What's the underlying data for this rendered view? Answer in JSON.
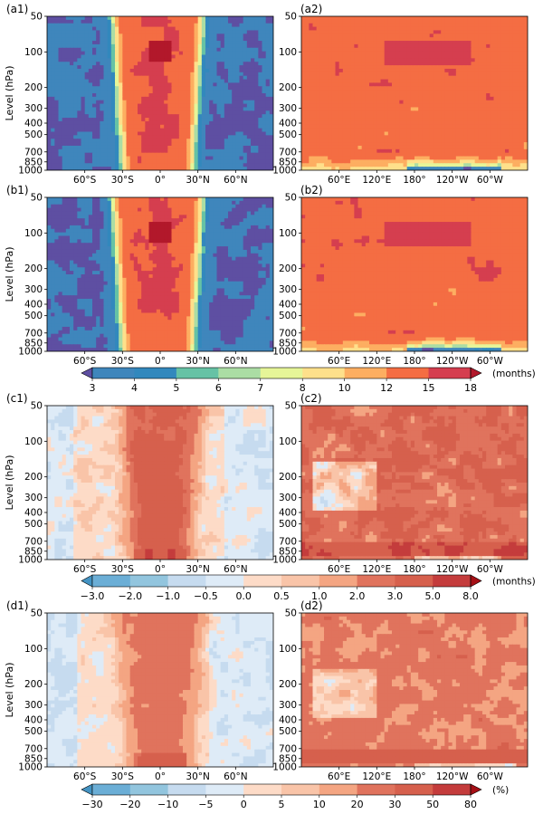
{
  "chart_data": {
    "type": "heatmap",
    "description_panels": [
      {
        "id": "a1",
        "label": "(a1)",
        "x_axis": "latitude",
        "x_ticks": [
          "60°S",
          "30°S",
          "0°",
          "30°N",
          "60°N"
        ],
        "ylabel": "Level (hPa)",
        "field": "lifetime_lat"
      },
      {
        "id": "a2",
        "label": "(a2)",
        "x_axis": "longitude",
        "x_ticks": [
          "60°E",
          "120°E",
          "180°",
          "120°W",
          "60°W"
        ],
        "field": "lifetime_lon"
      },
      {
        "id": "b1",
        "label": "(b1)",
        "x_axis": "latitude",
        "x_ticks": [
          "60°S",
          "30°S",
          "0°",
          "30°N",
          "60°N"
        ],
        "ylabel": "Level (hPa)",
        "field": "lifetime_lat"
      },
      {
        "id": "b2",
        "label": "(b2)",
        "x_axis": "longitude",
        "x_ticks": [
          "60°E",
          "120°E",
          "180°",
          "120°W",
          "60°W"
        ],
        "field": "lifetime_lon"
      },
      {
        "id": "c1",
        "label": "(c1)",
        "x_axis": "latitude",
        "x_ticks": [
          "60°S",
          "30°S",
          "0°",
          "30°N",
          "60°N"
        ],
        "ylabel": "Level (hPa)",
        "field": "diff_lat"
      },
      {
        "id": "c2",
        "label": "(c2)",
        "x_axis": "longitude",
        "x_ticks": [
          "60°E",
          "120°E",
          "180°",
          "120°W",
          "60°W"
        ],
        "field": "diff_lon"
      },
      {
        "id": "d1",
        "label": "(d1)",
        "x_axis": "latitude",
        "x_ticks": [
          "60°S",
          "30°S",
          "0°",
          "30°N",
          "60°N"
        ],
        "ylabel": "Level (hPa)",
        "field": "pct_lat"
      },
      {
        "id": "d2",
        "label": "(d2)",
        "x_axis": "longitude",
        "x_ticks": [
          "60°E",
          "120°E",
          "180°",
          "120°W",
          "60°W"
        ],
        "field": "pct_lon"
      }
    ],
    "y_ticks": [
      "50",
      "100",
      "200",
      "300",
      "400",
      "500",
      "700",
      "850",
      "1000"
    ],
    "y_tick_values_hpa": [
      50,
      100,
      200,
      300,
      400,
      500,
      700,
      850,
      1000
    ],
    "latitude_range_deg": [
      -90,
      90
    ],
    "longitude_range_deg_east": [
      0,
      360
    ],
    "colorbars": [
      {
        "id": "cb1",
        "unit": "(months)",
        "ticks": [
          "3",
          "4",
          "5",
          "6",
          "7",
          "8",
          "10",
          "12",
          "15",
          "18"
        ],
        "colors": [
          "#5e4fa2",
          "#3f86bc",
          "#3288bd",
          "#66c2a5",
          "#abdda4",
          "#e6f598",
          "#fee08b",
          "#fdae61",
          "#f46d43",
          "#d53e4f",
          "#b2182b"
        ]
      },
      {
        "id": "cb2",
        "unit": "(months)",
        "ticks": [
          "−3.0",
          "−2.0",
          "−1.0",
          "−0.5",
          "0.0",
          "0.5",
          "1.0",
          "2.0",
          "3.0",
          "5.0",
          "8.0"
        ],
        "colors": [
          "#4393c3",
          "#6baed6",
          "#92c5de",
          "#c6dbef",
          "#deebf7",
          "#fddbc7",
          "#f9c4a8",
          "#f4a582",
          "#e0735d",
          "#d6604d",
          "#c43c3c",
          "#a50f15"
        ]
      },
      {
        "id": "cb3",
        "unit": "(%)",
        "ticks": [
          "−30",
          "−20",
          "−10",
          "−5",
          "0",
          "5",
          "10",
          "20",
          "30",
          "50",
          "80"
        ],
        "colors": [
          "#4393c3",
          "#6baed6",
          "#92c5de",
          "#c6dbef",
          "#deebf7",
          "#fddbc7",
          "#f9c4a8",
          "#f4a582",
          "#e0735d",
          "#d6604d",
          "#c43c3c",
          "#a50f15"
        ]
      }
    ]
  }
}
